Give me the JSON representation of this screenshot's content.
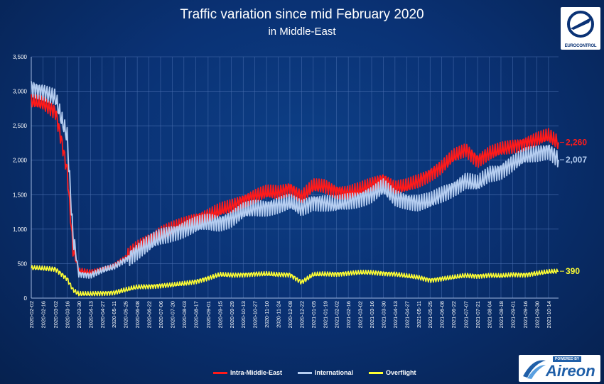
{
  "header": {
    "title": "Traffic variation since mid February 2020",
    "subtitle": "in Middle-East"
  },
  "logos": {
    "eurocontrol": "EUROCONTROL",
    "aireon_powered": "POWERED BY",
    "aireon": "Aireon"
  },
  "colors": {
    "intra": "#ff1a1a",
    "international": "#b5cdf0",
    "overflight": "#ffff33",
    "grid": "#4a6fb0"
  },
  "chart_data": {
    "type": "line",
    "ylim": [
      0,
      3500
    ],
    "yticks": [
      0,
      500,
      1000,
      1500,
      2000,
      2500,
      3000,
      3500
    ],
    "ytick_labels": [
      "0",
      "500",
      "1,000",
      "1,500",
      "2,000",
      "2,500",
      "3,000",
      "3,500"
    ],
    "x_start": "2020-02-02",
    "x_end": "2021-10-26",
    "x_tick_labels": [
      "2020-02-02",
      "2020-02-16",
      "2020-03-02",
      "2020-03-16",
      "2020-03-30",
      "2020-04-13",
      "2020-04-27",
      "2020-05-11",
      "2020-05-25",
      "2020-06-08",
      "2020-06-22",
      "2020-07-06",
      "2020-07-20",
      "2020-08-03",
      "2020-08-17",
      "2020-09-01",
      "2020-09-15",
      "2020-09-29",
      "2020-10-13",
      "2020-10-27",
      "2020-11-10",
      "2020-11-24",
      "2020-12-08",
      "2020-12-22",
      "2021-01-05",
      "2021-01-19",
      "2021-02-02",
      "2021-02-16",
      "2021-03-02",
      "2021-03-16",
      "2021-03-30",
      "2021-04-13",
      "2021-04-27",
      "2021-05-11",
      "2021-05-25",
      "2021-06-08",
      "2021-06-22",
      "2021-07-07",
      "2021-07-21",
      "2021-08-04",
      "2021-08-18",
      "2021-09-01",
      "2021-09-16",
      "2021-09-30",
      "2021-10-14"
    ],
    "grid": true,
    "legend_position": "bottom",
    "series": [
      {
        "name": "Intra-Middle-East",
        "color": "#ff1a1a",
        "end_label": "2,260",
        "points": [
          [
            "2020-02-02",
            2850
          ],
          [
            "2020-02-16",
            2820
          ],
          [
            "2020-03-02",
            2700
          ],
          [
            "2020-03-09",
            2300
          ],
          [
            "2020-03-16",
            1850
          ],
          [
            "2020-03-23",
            700
          ],
          [
            "2020-03-30",
            400
          ],
          [
            "2020-04-13",
            370
          ],
          [
            "2020-04-27",
            420
          ],
          [
            "2020-05-11",
            470
          ],
          [
            "2020-05-25",
            580
          ],
          [
            "2020-06-08",
            730
          ],
          [
            "2020-06-22",
            850
          ],
          [
            "2020-07-06",
            950
          ],
          [
            "2020-07-20",
            1000
          ],
          [
            "2020-08-03",
            1070
          ],
          [
            "2020-08-17",
            1150
          ],
          [
            "2020-09-01",
            1200
          ],
          [
            "2020-09-15",
            1270
          ],
          [
            "2020-09-29",
            1330
          ],
          [
            "2020-10-13",
            1420
          ],
          [
            "2020-10-27",
            1480
          ],
          [
            "2020-11-10",
            1530
          ],
          [
            "2020-11-24",
            1530
          ],
          [
            "2020-12-08",
            1600
          ],
          [
            "2020-12-22",
            1470
          ],
          [
            "2021-01-05",
            1620
          ],
          [
            "2021-01-19",
            1620
          ],
          [
            "2021-02-02",
            1550
          ],
          [
            "2021-02-16",
            1530
          ],
          [
            "2021-03-02",
            1570
          ],
          [
            "2021-03-16",
            1650
          ],
          [
            "2021-03-30",
            1730
          ],
          [
            "2021-04-13",
            1600
          ],
          [
            "2021-04-27",
            1620
          ],
          [
            "2021-05-11",
            1700
          ],
          [
            "2021-05-25",
            1800
          ],
          [
            "2021-06-08",
            1900
          ],
          [
            "2021-06-22",
            2050
          ],
          [
            "2021-07-07",
            2150
          ],
          [
            "2021-07-21",
            2000
          ],
          [
            "2021-08-04",
            2100
          ],
          [
            "2021-08-18",
            2150
          ],
          [
            "2021-09-01",
            2200
          ],
          [
            "2021-09-16",
            2250
          ],
          [
            "2021-09-30",
            2300
          ],
          [
            "2021-10-14",
            2350
          ],
          [
            "2021-10-26",
            2260
          ]
        ]
      },
      {
        "name": "International",
        "color": "#b5cdf0",
        "end_label": "2,007",
        "points": [
          [
            "2020-02-02",
            3050
          ],
          [
            "2020-02-16",
            3000
          ],
          [
            "2020-03-02",
            2900
          ],
          [
            "2020-03-09",
            2600
          ],
          [
            "2020-03-16",
            2350
          ],
          [
            "2020-03-23",
            900
          ],
          [
            "2020-03-30",
            350
          ],
          [
            "2020-04-13",
            330
          ],
          [
            "2020-04-27",
            400
          ],
          [
            "2020-05-11",
            450
          ],
          [
            "2020-05-25",
            560
          ],
          [
            "2020-06-08",
            680
          ],
          [
            "2020-06-22",
            780
          ],
          [
            "2020-07-06",
            880
          ],
          [
            "2020-07-20",
            950
          ],
          [
            "2020-08-03",
            1000
          ],
          [
            "2020-08-17",
            1050
          ],
          [
            "2020-09-01",
            1100
          ],
          [
            "2020-09-15",
            1100
          ],
          [
            "2020-09-29",
            1150
          ],
          [
            "2020-10-13",
            1250
          ],
          [
            "2020-10-27",
            1300
          ],
          [
            "2020-11-10",
            1320
          ],
          [
            "2020-11-24",
            1350
          ],
          [
            "2020-12-08",
            1380
          ],
          [
            "2020-12-22",
            1300
          ],
          [
            "2021-01-05",
            1400
          ],
          [
            "2021-01-19",
            1380
          ],
          [
            "2021-02-02",
            1350
          ],
          [
            "2021-02-16",
            1400
          ],
          [
            "2021-03-02",
            1450
          ],
          [
            "2021-03-16",
            1500
          ],
          [
            "2021-03-30",
            1600
          ],
          [
            "2021-04-13",
            1450
          ],
          [
            "2021-04-27",
            1420
          ],
          [
            "2021-05-11",
            1380
          ],
          [
            "2021-05-25",
            1400
          ],
          [
            "2021-06-08",
            1500
          ],
          [
            "2021-06-22",
            1600
          ],
          [
            "2021-07-07",
            1700
          ],
          [
            "2021-07-21",
            1650
          ],
          [
            "2021-08-04",
            1800
          ],
          [
            "2021-08-18",
            1850
          ],
          [
            "2021-09-01",
            1950
          ],
          [
            "2021-09-16",
            2050
          ],
          [
            "2021-09-30",
            2100
          ],
          [
            "2021-10-14",
            2150
          ],
          [
            "2021-10-26",
            2007
          ]
        ]
      },
      {
        "name": "Overflight",
        "color": "#ffff33",
        "end_label": "390",
        "points": [
          [
            "2020-02-02",
            440
          ],
          [
            "2020-02-16",
            430
          ],
          [
            "2020-03-02",
            420
          ],
          [
            "2020-03-16",
            280
          ],
          [
            "2020-03-23",
            120
          ],
          [
            "2020-03-30",
            60
          ],
          [
            "2020-04-13",
            60
          ],
          [
            "2020-04-27",
            70
          ],
          [
            "2020-05-11",
            80
          ],
          [
            "2020-05-25",
            120
          ],
          [
            "2020-06-08",
            160
          ],
          [
            "2020-06-22",
            170
          ],
          [
            "2020-07-06",
            180
          ],
          [
            "2020-07-20",
            190
          ],
          [
            "2020-08-03",
            210
          ],
          [
            "2020-08-17",
            240
          ],
          [
            "2020-09-01",
            290
          ],
          [
            "2020-09-15",
            340
          ],
          [
            "2020-09-29",
            330
          ],
          [
            "2020-10-13",
            340
          ],
          [
            "2020-10-27",
            350
          ],
          [
            "2020-11-10",
            350
          ],
          [
            "2020-11-24",
            340
          ],
          [
            "2020-12-08",
            340
          ],
          [
            "2020-12-22",
            230
          ],
          [
            "2021-01-05",
            340
          ],
          [
            "2021-01-19",
            350
          ],
          [
            "2021-02-02",
            350
          ],
          [
            "2021-02-16",
            360
          ],
          [
            "2021-03-02",
            370
          ],
          [
            "2021-03-16",
            370
          ],
          [
            "2021-03-30",
            360
          ],
          [
            "2021-04-13",
            350
          ],
          [
            "2021-04-27",
            320
          ],
          [
            "2021-05-11",
            300
          ],
          [
            "2021-05-25",
            260
          ],
          [
            "2021-06-08",
            280
          ],
          [
            "2021-06-22",
            300
          ],
          [
            "2021-07-07",
            330
          ],
          [
            "2021-07-21",
            320
          ],
          [
            "2021-08-04",
            330
          ],
          [
            "2021-08-18",
            320
          ],
          [
            "2021-09-01",
            340
          ],
          [
            "2021-09-16",
            340
          ],
          [
            "2021-09-30",
            360
          ],
          [
            "2021-10-14",
            380
          ],
          [
            "2021-10-26",
            390
          ]
        ]
      }
    ]
  }
}
